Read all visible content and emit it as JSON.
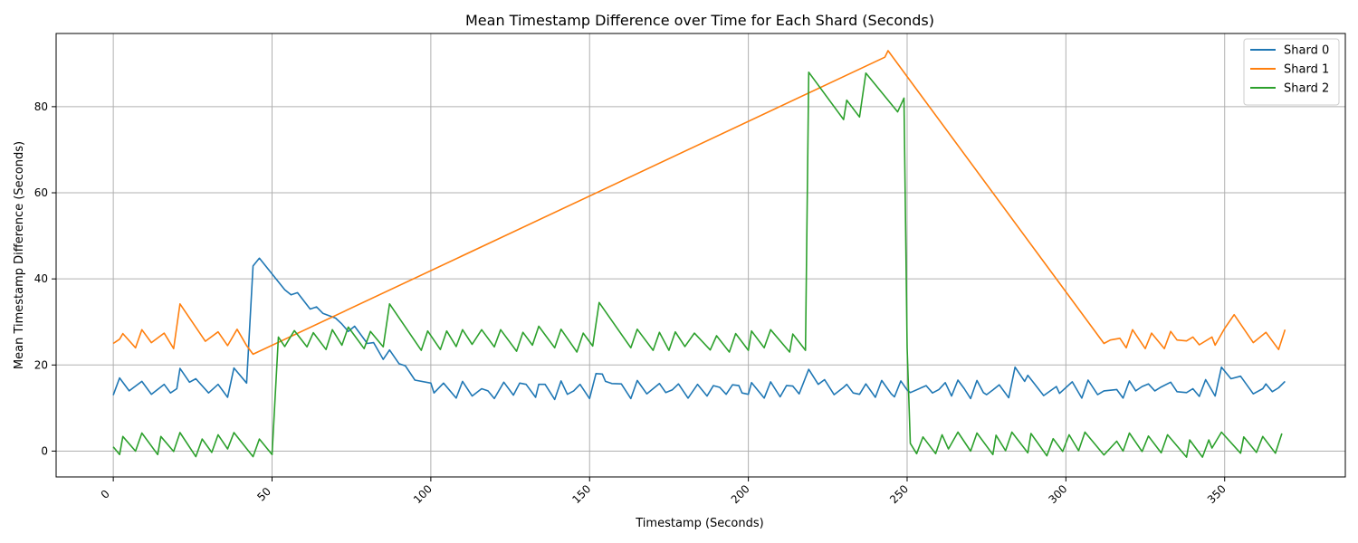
{
  "chart_data": {
    "type": "line",
    "title": "Mean Timestamp Difference over Time for Each Shard (Seconds)",
    "xlabel": "Timestamp (Seconds)",
    "ylabel": "Mean Timestamp Difference (Seconds)",
    "xlim": [
      -18,
      388
    ],
    "ylim": [
      -6,
      97
    ],
    "xticks": [
      0,
      50,
      100,
      150,
      200,
      250,
      300,
      350
    ],
    "yticks": [
      0,
      20,
      40,
      60,
      80
    ],
    "grid": true,
    "legend_position": "top-right",
    "series": [
      {
        "name": "Shard 0",
        "color": "#1f77b4",
        "points": [
          [
            0,
            13
          ],
          [
            2,
            17
          ],
          [
            5,
            14
          ],
          [
            9,
            16.2
          ],
          [
            12,
            13.2
          ],
          [
            16,
            15.5
          ],
          [
            18,
            13.5
          ],
          [
            20,
            14.5
          ],
          [
            21,
            19.2
          ],
          [
            24,
            16
          ],
          [
            26,
            16.8
          ],
          [
            30,
            13.5
          ],
          [
            33,
            15.5
          ],
          [
            36,
            12.5
          ],
          [
            38,
            19.3
          ],
          [
            42,
            15.8
          ],
          [
            44,
            43
          ],
          [
            46,
            44.8
          ],
          [
            54,
            37.5
          ],
          [
            56,
            36.3
          ],
          [
            58,
            36.8
          ],
          [
            62,
            33
          ],
          [
            64,
            33.5
          ],
          [
            66,
            32
          ],
          [
            70,
            30.9
          ],
          [
            72,
            29.5
          ],
          [
            74,
            27.8
          ],
          [
            76,
            29
          ],
          [
            78,
            27
          ],
          [
            80,
            25
          ],
          [
            82,
            25.2
          ],
          [
            85,
            21.3
          ],
          [
            87,
            23.5
          ],
          [
            90,
            20.3
          ],
          [
            92,
            19.8
          ],
          [
            95,
            16.5
          ],
          [
            100,
            15.8
          ],
          [
            101,
            13.5
          ],
          [
            104,
            15.8
          ],
          [
            108,
            12.3
          ],
          [
            110,
            16.2
          ],
          [
            113,
            12.8
          ],
          [
            116,
            14.5
          ],
          [
            118,
            14
          ],
          [
            120,
            12.2
          ],
          [
            123,
            16
          ],
          [
            126,
            13
          ],
          [
            128,
            15.8
          ],
          [
            130,
            15.5
          ],
          [
            133,
            12.5
          ],
          [
            134,
            15.5
          ],
          [
            136,
            15.5
          ],
          [
            139,
            12
          ],
          [
            141,
            16.3
          ],
          [
            143,
            13.2
          ],
          [
            145,
            14
          ],
          [
            147,
            15.5
          ],
          [
            150,
            12.2
          ],
          [
            152,
            18
          ],
          [
            154,
            17.9
          ],
          [
            155,
            16.2
          ],
          [
            157,
            15.7
          ],
          [
            160,
            15.6
          ],
          [
            163,
            12.2
          ],
          [
            165,
            16.4
          ],
          [
            168,
            13.3
          ],
          [
            170,
            14.5
          ],
          [
            172,
            15.7
          ],
          [
            174,
            13.6
          ],
          [
            176,
            14.2
          ],
          [
            178,
            15.6
          ],
          [
            181,
            12.3
          ],
          [
            184,
            15.5
          ],
          [
            187,
            12.8
          ],
          [
            189,
            15.2
          ],
          [
            191,
            14.8
          ],
          [
            193,
            13.2
          ],
          [
            195,
            15.4
          ],
          [
            197,
            15.2
          ],
          [
            198,
            13.5
          ],
          [
            200,
            13.2
          ],
          [
            201,
            15.9
          ],
          [
            205,
            12.3
          ],
          [
            207,
            16.1
          ],
          [
            210,
            12.6
          ],
          [
            212,
            15.2
          ],
          [
            214,
            15.1
          ],
          [
            216,
            13.3
          ],
          [
            219,
            19
          ],
          [
            222,
            15.5
          ],
          [
            224,
            16.6
          ],
          [
            227,
            13.1
          ],
          [
            230,
            14.8
          ],
          [
            231,
            15.5
          ],
          [
            233,
            13.5
          ],
          [
            235,
            13.2
          ],
          [
            237,
            15.6
          ],
          [
            240,
            12.5
          ],
          [
            242,
            16.4
          ],
          [
            245,
            13.3
          ],
          [
            246,
            12.6
          ],
          [
            248,
            16.3
          ],
          [
            250,
            14.2
          ],
          [
            251,
            13.6
          ],
          [
            256,
            15.2
          ],
          [
            258,
            13.5
          ],
          [
            260,
            14.3
          ],
          [
            262,
            15.9
          ],
          [
            264,
            12.8
          ],
          [
            266,
            16.5
          ],
          [
            268,
            14.5
          ],
          [
            270,
            12.2
          ],
          [
            272,
            16.4
          ],
          [
            274,
            13.6
          ],
          [
            275,
            13.1
          ],
          [
            277,
            14.2
          ],
          [
            279,
            15.4
          ],
          [
            282,
            12.4
          ],
          [
            284,
            19.5
          ],
          [
            287,
            16.2
          ],
          [
            288,
            17.6
          ],
          [
            293,
            12.9
          ],
          [
            297,
            15
          ],
          [
            298,
            13.4
          ],
          [
            302,
            16.1
          ],
          [
            305,
            12.3
          ],
          [
            307,
            16.5
          ],
          [
            310,
            13.1
          ],
          [
            312,
            14
          ],
          [
            316,
            14.3
          ],
          [
            318,
            12.3
          ],
          [
            320,
            16.3
          ],
          [
            322,
            14
          ],
          [
            324,
            15
          ],
          [
            326,
            15.6
          ],
          [
            328,
            14
          ],
          [
            330,
            14.9
          ],
          [
            333,
            16
          ],
          [
            335,
            13.8
          ],
          [
            338,
            13.6
          ],
          [
            340,
            14.5
          ],
          [
            342,
            12.7
          ],
          [
            344,
            16.6
          ],
          [
            347,
            12.8
          ],
          [
            349,
            19.5
          ],
          [
            352,
            16.8
          ],
          [
            355,
            17.4
          ],
          [
            359,
            13.3
          ],
          [
            362,
            14.5
          ],
          [
            363,
            15.6
          ],
          [
            365,
            13.8
          ],
          [
            367,
            14.7
          ],
          [
            369,
            16.2
          ]
        ]
      },
      {
        "name": "Shard 1",
        "color": "#ff7f0e",
        "points": [
          [
            0,
            25
          ],
          [
            2,
            26
          ],
          [
            3,
            27.3
          ],
          [
            7,
            24
          ],
          [
            9,
            28.2
          ],
          [
            12,
            25.2
          ],
          [
            16,
            27.4
          ],
          [
            19,
            23.8
          ],
          [
            21,
            34.2
          ],
          [
            29,
            25.5
          ],
          [
            33,
            27.7
          ],
          [
            36,
            24.5
          ],
          [
            39,
            28.3
          ],
          [
            42,
            24.5
          ],
          [
            44,
            22.5
          ],
          [
            243,
            91.5
          ],
          [
            244,
            93
          ],
          [
            312,
            25
          ],
          [
            314,
            25.8
          ],
          [
            317,
            26.2
          ],
          [
            319,
            24
          ],
          [
            321,
            28.2
          ],
          [
            325,
            23.8
          ],
          [
            327,
            27.4
          ],
          [
            331,
            23.8
          ],
          [
            333,
            27.8
          ],
          [
            335,
            25.8
          ],
          [
            338,
            25.6
          ],
          [
            340,
            26.5
          ],
          [
            342,
            24.7
          ],
          [
            346,
            26.5
          ],
          [
            347,
            24.6
          ],
          [
            350,
            28.5
          ],
          [
            353,
            31.7
          ],
          [
            359,
            25.2
          ],
          [
            363,
            27.6
          ],
          [
            367,
            23.6
          ],
          [
            369,
            28.2
          ]
        ]
      },
      {
        "name": "Shard 2",
        "color": "#2ca02c",
        "points": [
          [
            0,
            1
          ],
          [
            2,
            -0.8
          ],
          [
            3,
            3.4
          ],
          [
            7,
            0
          ],
          [
            9,
            4.2
          ],
          [
            14,
            -0.8
          ],
          [
            15,
            3.4
          ],
          [
            19,
            -0.1
          ],
          [
            21,
            4.3
          ],
          [
            26,
            -1.3
          ],
          [
            28,
            2.8
          ],
          [
            31,
            -0.3
          ],
          [
            33,
            3.8
          ],
          [
            36,
            0.5
          ],
          [
            38,
            4.3
          ],
          [
            44,
            -1.3
          ],
          [
            46,
            2.8
          ],
          [
            50,
            -0.8
          ],
          [
            52,
            26.5
          ],
          [
            54,
            24.3
          ],
          [
            57,
            28
          ],
          [
            61,
            24.2
          ],
          [
            63,
            27.5
          ],
          [
            67,
            23.6
          ],
          [
            69,
            28.2
          ],
          [
            72,
            24.6
          ],
          [
            74,
            28.8
          ],
          [
            79,
            23.8
          ],
          [
            81,
            27.8
          ],
          [
            85,
            24.2
          ],
          [
            87,
            34.2
          ],
          [
            97,
            23.4
          ],
          [
            99,
            27.9
          ],
          [
            103,
            23.6
          ],
          [
            105,
            27.9
          ],
          [
            108,
            24.3
          ],
          [
            110,
            28.2
          ],
          [
            113,
            24.8
          ],
          [
            116,
            28.2
          ],
          [
            120,
            24.2
          ],
          [
            122,
            28.2
          ],
          [
            127,
            23.2
          ],
          [
            129,
            27.6
          ],
          [
            132,
            24.6
          ],
          [
            134,
            29
          ],
          [
            139,
            24
          ],
          [
            141,
            28.3
          ],
          [
            146,
            23
          ],
          [
            148,
            27.4
          ],
          [
            151,
            24.4
          ],
          [
            153,
            34.5
          ],
          [
            163,
            24
          ],
          [
            165,
            28.3
          ],
          [
            170,
            23.4
          ],
          [
            172,
            27.6
          ],
          [
            175,
            23.4
          ],
          [
            177,
            27.7
          ],
          [
            180,
            24.3
          ],
          [
            183,
            27.4
          ],
          [
            188,
            23.5
          ],
          [
            190,
            26.8
          ],
          [
            194,
            23
          ],
          [
            196,
            27.3
          ],
          [
            200,
            23.4
          ],
          [
            201,
            27.9
          ],
          [
            205,
            24
          ],
          [
            207,
            28.2
          ],
          [
            213,
            23
          ],
          [
            214,
            27.2
          ],
          [
            218,
            23.4
          ],
          [
            219,
            88
          ],
          [
            230,
            77
          ],
          [
            231,
            81.5
          ],
          [
            235,
            77.6
          ],
          [
            237,
            87.8
          ],
          [
            247,
            78.8
          ],
          [
            249,
            82
          ],
          [
            250,
            24
          ],
          [
            251,
            1.8
          ],
          [
            253,
            -0.6
          ],
          [
            255,
            3.3
          ],
          [
            259,
            -0.6
          ],
          [
            261,
            3.8
          ],
          [
            263,
            0.5
          ],
          [
            266,
            4.4
          ],
          [
            270,
            0
          ],
          [
            272,
            4.2
          ],
          [
            277,
            -0.8
          ],
          [
            278,
            3.7
          ],
          [
            281,
            0.1
          ],
          [
            283,
            4.4
          ],
          [
            288,
            -0.4
          ],
          [
            289,
            4.1
          ],
          [
            294,
            -1.1
          ],
          [
            296,
            2.9
          ],
          [
            299,
            -0.1
          ],
          [
            301,
            3.8
          ],
          [
            304,
            0.1
          ],
          [
            306,
            4.4
          ],
          [
            312,
            -0.9
          ],
          [
            316,
            2.3
          ],
          [
            318,
            0
          ],
          [
            320,
            4.2
          ],
          [
            324,
            -0.1
          ],
          [
            326,
            3.5
          ],
          [
            330,
            -0.4
          ],
          [
            332,
            3.8
          ],
          [
            338,
            -1.4
          ],
          [
            339,
            2.6
          ],
          [
            343,
            -1.4
          ],
          [
            345,
            2.6
          ],
          [
            346,
            0.7
          ],
          [
            349,
            4.4
          ],
          [
            355,
            -0.5
          ],
          [
            356,
            3.3
          ],
          [
            360,
            -0.3
          ],
          [
            362,
            3.4
          ],
          [
            366,
            -0.5
          ],
          [
            368,
            4.1
          ]
        ]
      }
    ]
  }
}
